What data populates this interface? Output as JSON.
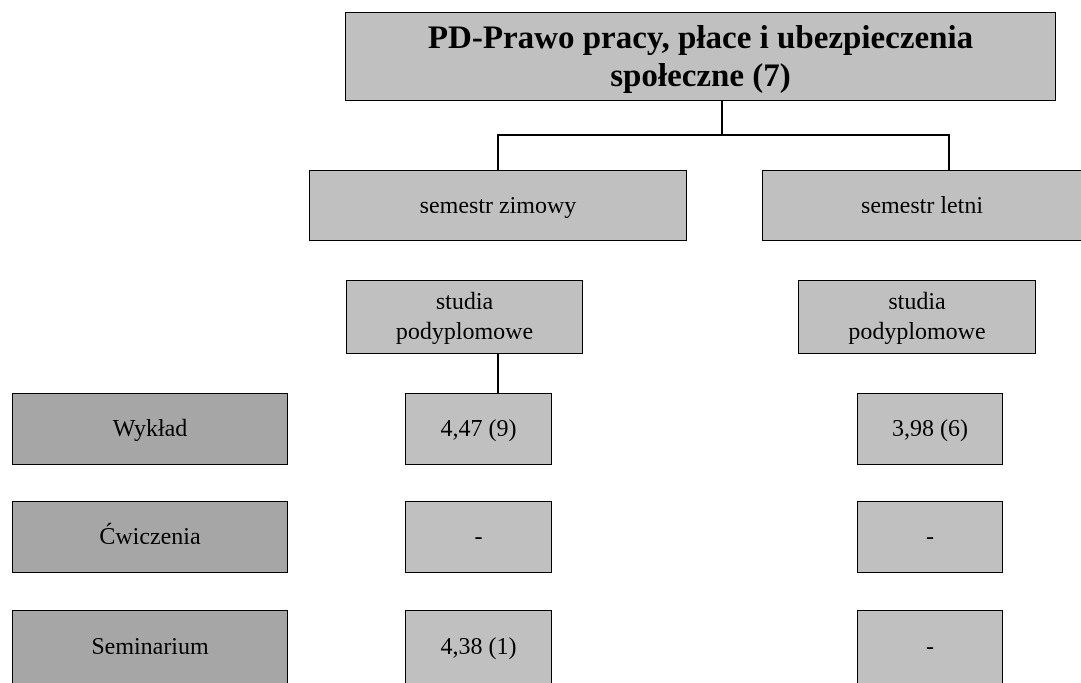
{
  "title": "PD-Prawo pracy, płace i ubezpieczenia społeczne (7)",
  "semesters": [
    {
      "label": "semestr zimowy",
      "study": "studia podyplomowe",
      "values": [
        "4,47 (9)",
        "-",
        "4,38 (1)"
      ]
    },
    {
      "label": "semestr letni",
      "study": "studia podyplomowe",
      "values": [
        "3,98 (6)",
        "-",
        "-"
      ]
    }
  ],
  "rows": [
    "Wykład",
    "Ćwiczenia",
    "Seminarium"
  ]
}
